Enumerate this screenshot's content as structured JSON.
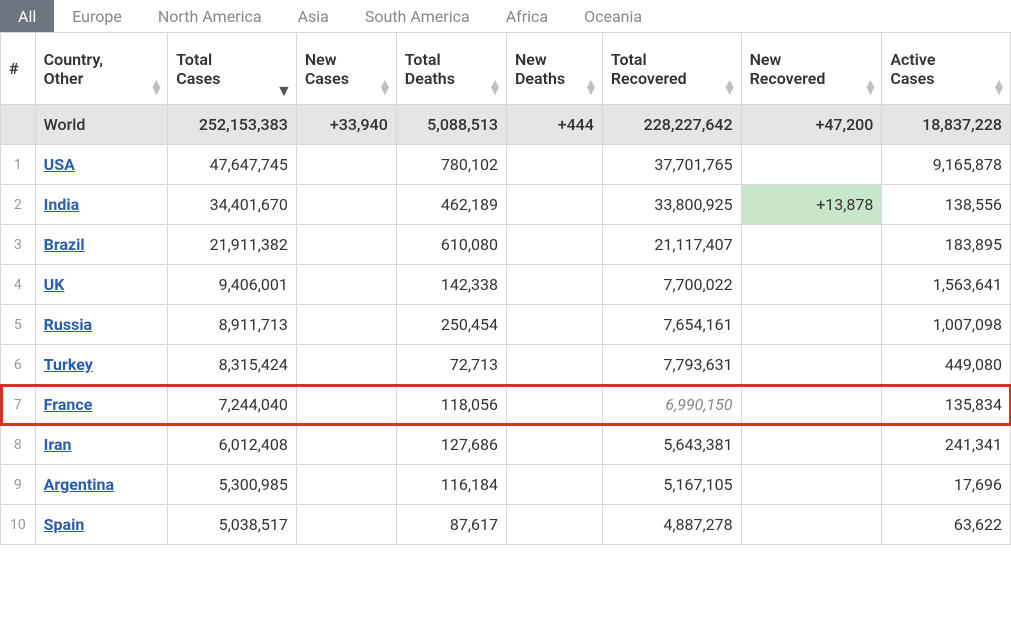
{
  "tabs": {
    "items": [
      {
        "label": "All",
        "active": true
      },
      {
        "label": "Europe",
        "active": false
      },
      {
        "label": "North America",
        "active": false
      },
      {
        "label": "Asia",
        "active": false
      },
      {
        "label": "South America",
        "active": false
      },
      {
        "label": "Africa",
        "active": false
      },
      {
        "label": "Oceania",
        "active": false
      }
    ]
  },
  "table": {
    "columns": [
      {
        "key": "idx",
        "label": "#",
        "sortable": false
      },
      {
        "key": "country",
        "label": "Country,\nOther",
        "sortable": true,
        "sorted": false
      },
      {
        "key": "total_cases",
        "label": "Total\nCases",
        "sortable": true,
        "sorted": "desc"
      },
      {
        "key": "new_cases",
        "label": "New\nCases",
        "sortable": true,
        "sorted": false
      },
      {
        "key": "total_deaths",
        "label": "Total\nDeaths",
        "sortable": true,
        "sorted": false
      },
      {
        "key": "new_deaths",
        "label": "New\nDeaths",
        "sortable": true,
        "sorted": false
      },
      {
        "key": "total_recovered",
        "label": "Total\nRecovered",
        "sortable": true,
        "sorted": false
      },
      {
        "key": "new_recovered",
        "label": "New\nRecovered",
        "sortable": true,
        "sorted": false
      },
      {
        "key": "active_cases",
        "label": "Active\nCases",
        "sortable": true,
        "sorted": false
      }
    ],
    "world_row": {
      "label": "World",
      "total_cases": "252,153,383",
      "new_cases": "+33,940",
      "total_deaths": "5,088,513",
      "new_deaths": "+444",
      "total_recovered": "228,227,642",
      "new_recovered": "+47,200",
      "active_cases": "18,837,228"
    },
    "rows": [
      {
        "idx": "1",
        "country": "USA",
        "total_cases": "47,647,745",
        "new_cases": "",
        "total_deaths": "780,102",
        "new_deaths": "",
        "total_recovered": "37,701,765",
        "new_recovered": "",
        "active_cases": "9,165,878"
      },
      {
        "idx": "2",
        "country": "India",
        "total_cases": "34,401,670",
        "new_cases": "",
        "total_deaths": "462,189",
        "new_deaths": "",
        "total_recovered": "33,800,925",
        "new_recovered": "+13,878",
        "new_recovered_hl": true,
        "active_cases": "138,556"
      },
      {
        "idx": "3",
        "country": "Brazil",
        "total_cases": "21,911,382",
        "new_cases": "",
        "total_deaths": "610,080",
        "new_deaths": "",
        "total_recovered": "21,117,407",
        "new_recovered": "",
        "active_cases": "183,895"
      },
      {
        "idx": "4",
        "country": "UK",
        "total_cases": "9,406,001",
        "new_cases": "",
        "total_deaths": "142,338",
        "new_deaths": "",
        "total_recovered": "7,700,022",
        "new_recovered": "",
        "active_cases": "1,563,641"
      },
      {
        "idx": "5",
        "country": "Russia",
        "total_cases": "8,911,713",
        "new_cases": "",
        "total_deaths": "250,454",
        "new_deaths": "",
        "total_recovered": "7,654,161",
        "new_recovered": "",
        "active_cases": "1,007,098"
      },
      {
        "idx": "6",
        "country": "Turkey",
        "total_cases": "8,315,424",
        "new_cases": "",
        "total_deaths": "72,713",
        "new_deaths": "",
        "total_recovered": "7,793,631",
        "new_recovered": "",
        "active_cases": "449,080"
      },
      {
        "idx": "7",
        "country": "France",
        "total_cases": "7,244,040",
        "new_cases": "",
        "total_deaths": "118,056",
        "new_deaths": "",
        "total_recovered": "6,990,150",
        "total_recovered_style": "italic-grey",
        "new_recovered": "",
        "active_cases": "135,834",
        "highlight": true
      },
      {
        "idx": "8",
        "country": "Iran",
        "total_cases": "6,012,408",
        "new_cases": "",
        "total_deaths": "127,686",
        "new_deaths": "",
        "total_recovered": "5,643,381",
        "new_recovered": "",
        "active_cases": "241,341"
      },
      {
        "idx": "9",
        "country": "Argentina",
        "total_cases": "5,300,985",
        "new_cases": "",
        "total_deaths": "116,184",
        "new_deaths": "",
        "total_recovered": "5,167,105",
        "new_recovered": "",
        "active_cases": "17,696"
      },
      {
        "idx": "10",
        "country": "Spain",
        "total_cases": "5,038,517",
        "new_cases": "",
        "total_deaths": "87,617",
        "new_deaths": "",
        "total_recovered": "4,887,278",
        "new_recovered": "",
        "active_cases": "63,622"
      }
    ],
    "colors": {
      "link": "#2a5db0",
      "tab_active_bg": "#6d7580",
      "tab_inactive_fg": "#888888",
      "border": "#d7d7d7",
      "world_bg": "#e5e5e5",
      "highlight_green": "#c8e6c9",
      "highlight_row_border": "#d93025",
      "sort_icon": "#bfbfbf",
      "sort_icon_active": "#555555"
    }
  }
}
